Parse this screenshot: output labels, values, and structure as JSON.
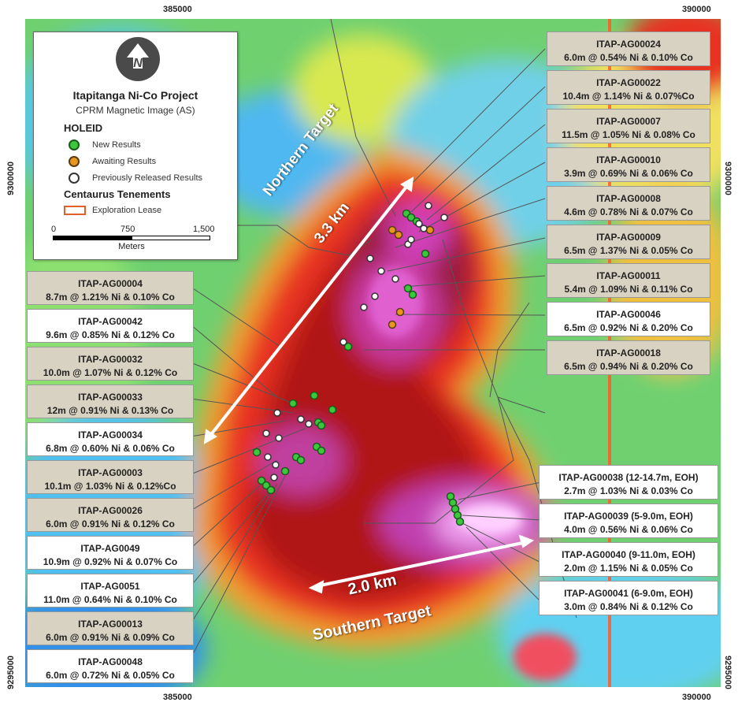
{
  "coords": {
    "top_left_x": "385000",
    "top_right_x": "390000",
    "bottom_left_x": "385000",
    "bottom_right_x": "390000",
    "left_top_y": "9300000",
    "left_bottom_y": "9295000",
    "right_top_y": "9300000",
    "right_bottom_y": "9295000"
  },
  "legend": {
    "north_icon": "north-arrow-icon",
    "title": "Itapitanga Ni-Co Project",
    "subtitle": "CPRM Magnetic Image (AS)",
    "holeid_heading": "HOLEID",
    "items": [
      {
        "label": "New Results",
        "color": "#3cc83c"
      },
      {
        "label": "Awaiting Results",
        "color": "#e8961e"
      },
      {
        "label": "Previously Released Results",
        "color": "#ffffff"
      }
    ],
    "tenements_heading": "Centaurus Tenements",
    "lease_label": "Exploration Lease",
    "lease_color": "#e0602a",
    "scale": {
      "labels": [
        "0",
        "750",
        "1,500"
      ],
      "unit": "Meters"
    }
  },
  "targets": {
    "northern_name": "Northern Target",
    "northern_dist": "3.3 km",
    "southern_name": "Southern Target",
    "southern_dist": "2.0 km"
  },
  "callouts_right": [
    {
      "id": "ITAP-AG00024",
      "result": "6.0m @ 0.54% Ni & 0.10% Co",
      "style": "tan"
    },
    {
      "id": "ITAP-AG00022",
      "result": "10.4m @ 1.14% Ni & 0.07%Co",
      "style": "tan"
    },
    {
      "id": "ITAP-AG00007",
      "result": "11.5m @ 1.05% Ni & 0.08% Co",
      "style": "tan"
    },
    {
      "id": "ITAP-AG00010",
      "result": "3.9m @ 0.69% Ni & 0.06% Co",
      "style": "tan"
    },
    {
      "id": "ITAP-AG00008",
      "result": "4.6m @ 0.78% Ni & 0.07% Co",
      "style": "tan"
    },
    {
      "id": "ITAP-AG00009",
      "result": "6.5m @ 1.37% Ni & 0.05% Co",
      "style": "tan"
    },
    {
      "id": "ITAP-AG00011",
      "result": "5.4m @ 1.09% Ni & 0.11% Co",
      "style": "tan"
    },
    {
      "id": "ITAP-AG00046",
      "result": "6.5m @ 0.92% Ni & 0.20% Co",
      "style": "white"
    },
    {
      "id": "ITAP-AG00018",
      "result": "6.5m @ 0.94% Ni & 0.20% Co",
      "style": "tan"
    }
  ],
  "callouts_left": [
    {
      "id": "ITAP-AG00004",
      "result": "8.7m @ 1.21% Ni & 0.10% Co",
      "style": "tan"
    },
    {
      "id": "ITAP-AG00042",
      "result": "9.6m @ 0.85% Ni & 0.12% Co",
      "style": "white"
    },
    {
      "id": "ITAP-AG00032",
      "result": "10.0m @ 1.07% Ni & 0.12% Co",
      "style": "tan"
    },
    {
      "id": "ITAP-AG00033",
      "result": "12m @ 0.91% Ni & 0.13% Co",
      "style": "tan"
    },
    {
      "id": "ITAP-AG00034",
      "result": "6.8m @ 0.60% Ni & 0.06% Co",
      "style": "white"
    },
    {
      "id": "ITAP-AG00003",
      "result": "10.1m @ 1.03% Ni & 0.12%Co",
      "style": "tan"
    },
    {
      "id": "ITAP-AG00026",
      "result": "6.0m @ 0.91% Ni & 0.12% Co",
      "style": "tan"
    },
    {
      "id": "ITAP-AG0049",
      "result": "10.9m @ 0.92% Ni & 0.07% Co",
      "style": "white"
    },
    {
      "id": "ITAP-AG0051",
      "result": "11.0m @ 0.64% Ni & 0.10% Co",
      "style": "white"
    },
    {
      "id": "ITAP-AG00013",
      "result": "6.0m @ 0.91% Ni & 0.09% Co",
      "style": "tan"
    },
    {
      "id": "ITAP-AG00048",
      "result": "6.0m @ 0.72% Ni & 0.05% Co",
      "style": "white"
    }
  ],
  "callouts_south": [
    {
      "id": "ITAP-AG00038 (12-14.7m, EOH)",
      "result": "2.7m @ 1.03% Ni & 0.03% Co",
      "style": "white"
    },
    {
      "id": "ITAP-AG00039 (5-9.0m, EOH)",
      "result": "4.0m @ 0.56% Ni & 0.06% Co",
      "style": "white"
    },
    {
      "id": "ITAP-AG00040 (9-11.0m, EOH)",
      "result": "2.0m @ 1.15% Ni & 0.05% Co",
      "style": "white"
    },
    {
      "id": "ITAP-AG00041 (6-9.0m, EOH)",
      "result": "3.0m @ 0.84% Ni & 0.12% Co",
      "style": "white"
    }
  ]
}
